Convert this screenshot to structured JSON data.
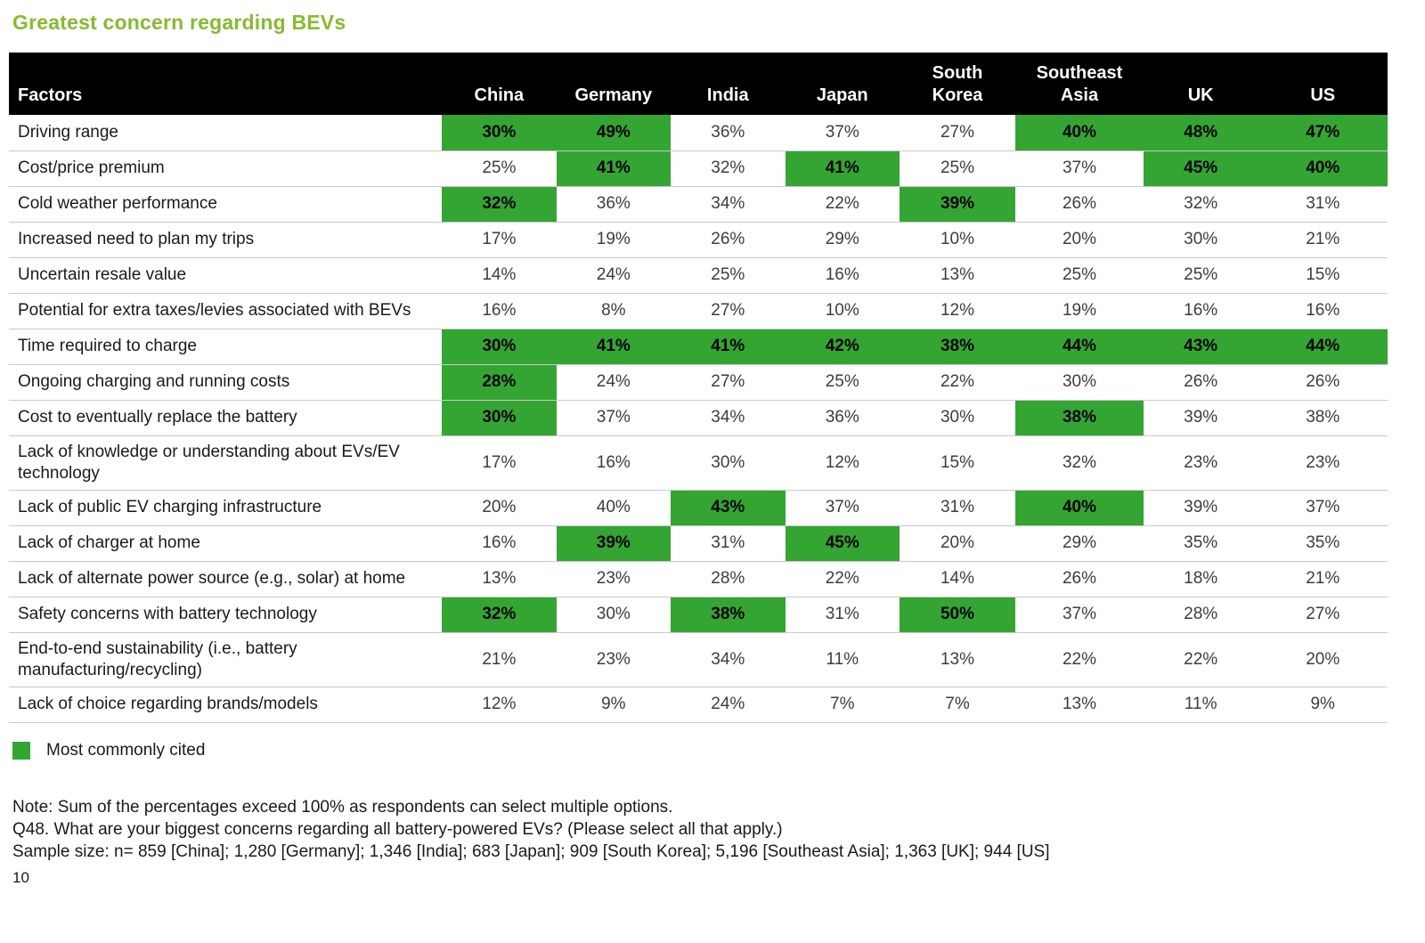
{
  "page": {
    "title": "Greatest concern regarding BEVs",
    "page_number": "10"
  },
  "colors": {
    "title_green": "#86bc2e",
    "highlight_green": "#34a533",
    "header_bg": "#000000",
    "header_text": "#ffffff",
    "row_separator": "#c9c9c9"
  },
  "legend": {
    "swatch_color": "#34a533",
    "label": "Most commonly cited"
  },
  "notes": [
    "Note: Sum of the percentages exceed 100% as respondents can select multiple options.",
    "Q48. What are your biggest concerns regarding all battery-powered EVs? (Please select all that apply.)",
    "Sample size: n= 859 [China]; 1,280 [Germany]; 1,346 [India]; 683 [Japan]; 909 [South Korea]; 5,196 [Southeast Asia]; 1,363 [UK]; 944 [US]"
  ],
  "chart_data": {
    "type": "table",
    "title": "Greatest concern regarding BEVs",
    "highlight_legend": "Most commonly cited",
    "columns": [
      "Factors",
      "China",
      "Germany",
      "India",
      "Japan",
      "South Korea",
      "Southeast Asia",
      "UK",
      "US"
    ],
    "rows": [
      {
        "factor": "Driving range",
        "values": [
          "30%",
          "49%",
          "36%",
          "37%",
          "27%",
          "40%",
          "48%",
          "47%"
        ],
        "highlighted": [
          true,
          true,
          false,
          false,
          false,
          true,
          true,
          true
        ]
      },
      {
        "factor": "Cost/price premium",
        "values": [
          "25%",
          "41%",
          "32%",
          "41%",
          "25%",
          "37%",
          "45%",
          "40%"
        ],
        "highlighted": [
          false,
          true,
          false,
          true,
          false,
          false,
          true,
          true
        ]
      },
      {
        "factor": "Cold weather performance",
        "values": [
          "32%",
          "36%",
          "34%",
          "22%",
          "39%",
          "26%",
          "32%",
          "31%"
        ],
        "highlighted": [
          true,
          false,
          false,
          false,
          true,
          false,
          false,
          false
        ]
      },
      {
        "factor": "Increased need to plan my trips",
        "values": [
          "17%",
          "19%",
          "26%",
          "29%",
          "10%",
          "20%",
          "30%",
          "21%"
        ],
        "highlighted": [
          false,
          false,
          false,
          false,
          false,
          false,
          false,
          false
        ]
      },
      {
        "factor": "Uncertain resale value",
        "values": [
          "14%",
          "24%",
          "25%",
          "16%",
          "13%",
          "25%",
          "25%",
          "15%"
        ],
        "highlighted": [
          false,
          false,
          false,
          false,
          false,
          false,
          false,
          false
        ]
      },
      {
        "factor": "Potential for extra taxes/levies associated with BEVs",
        "values": [
          "16%",
          "8%",
          "27%",
          "10%",
          "12%",
          "19%",
          "16%",
          "16%"
        ],
        "highlighted": [
          false,
          false,
          false,
          false,
          false,
          false,
          false,
          false
        ]
      },
      {
        "factor": "Time required to charge",
        "values": [
          "30%",
          "41%",
          "41%",
          "42%",
          "38%",
          "44%",
          "43%",
          "44%"
        ],
        "highlighted": [
          true,
          true,
          true,
          true,
          true,
          true,
          true,
          true
        ]
      },
      {
        "factor": "Ongoing charging and running costs",
        "values": [
          "28%",
          "24%",
          "27%",
          "25%",
          "22%",
          "30%",
          "26%",
          "26%"
        ],
        "highlighted": [
          true,
          false,
          false,
          false,
          false,
          false,
          false,
          false
        ]
      },
      {
        "factor": "Cost to eventually replace the battery",
        "values": [
          "30%",
          "37%",
          "34%",
          "36%",
          "30%",
          "38%",
          "39%",
          "38%"
        ],
        "highlighted": [
          true,
          false,
          false,
          false,
          false,
          true,
          false,
          false
        ]
      },
      {
        "factor": "Lack of knowledge or understanding about EVs/EV technology",
        "values": [
          "17%",
          "16%",
          "30%",
          "12%",
          "15%",
          "32%",
          "23%",
          "23%"
        ],
        "highlighted": [
          false,
          false,
          false,
          false,
          false,
          false,
          false,
          false
        ]
      },
      {
        "factor": "Lack of public EV charging infrastructure",
        "values": [
          "20%",
          "40%",
          "43%",
          "37%",
          "31%",
          "40%",
          "39%",
          "37%"
        ],
        "highlighted": [
          false,
          false,
          true,
          false,
          false,
          true,
          false,
          false
        ]
      },
      {
        "factor": "Lack of charger at home",
        "values": [
          "16%",
          "39%",
          "31%",
          "45%",
          "20%",
          "29%",
          "35%",
          "35%"
        ],
        "highlighted": [
          false,
          true,
          false,
          true,
          false,
          false,
          false,
          false
        ]
      },
      {
        "factor": "Lack of alternate power source (e.g., solar) at home",
        "values": [
          "13%",
          "23%",
          "28%",
          "22%",
          "14%",
          "26%",
          "18%",
          "21%"
        ],
        "highlighted": [
          false,
          false,
          false,
          false,
          false,
          false,
          false,
          false
        ]
      },
      {
        "factor": "Safety concerns with battery technology",
        "values": [
          "32%",
          "30%",
          "38%",
          "31%",
          "50%",
          "37%",
          "28%",
          "27%"
        ],
        "highlighted": [
          true,
          false,
          true,
          false,
          true,
          false,
          false,
          false
        ]
      },
      {
        "factor": "End-to-end sustainability (i.e., battery manufacturing/recycling)",
        "values": [
          "21%",
          "23%",
          "34%",
          "11%",
          "13%",
          "22%",
          "22%",
          "20%"
        ],
        "highlighted": [
          false,
          false,
          false,
          false,
          false,
          false,
          false,
          false
        ]
      },
      {
        "factor": "Lack of choice regarding brands/models",
        "values": [
          "12%",
          "9%",
          "24%",
          "7%",
          "7%",
          "13%",
          "11%",
          "9%"
        ],
        "highlighted": [
          false,
          false,
          false,
          false,
          false,
          false,
          false,
          false
        ]
      }
    ]
  }
}
